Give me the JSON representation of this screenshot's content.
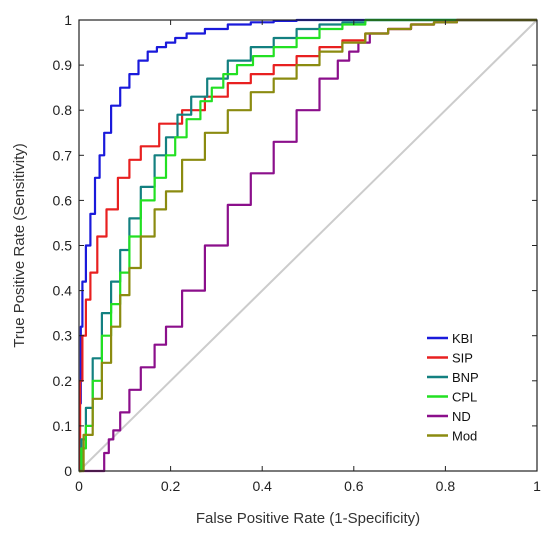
{
  "chart_data": {
    "type": "line",
    "xlabel": "False Positive Rate (1-Specificity)",
    "ylabel": "True Positive Rate (Sensitivity)",
    "xlim": [
      0,
      1
    ],
    "ylim": [
      0,
      1
    ],
    "xticks": [
      "0",
      "0.2",
      "0.4",
      "0.6",
      "0.8",
      "1"
    ],
    "yticks": [
      "0",
      "0.1",
      "0.2",
      "0.3",
      "0.4",
      "0.5",
      "0.6",
      "0.7",
      "0.8",
      "0.9",
      "1"
    ],
    "grid": false,
    "legend_position": "bottom-right",
    "series": [
      {
        "name": "KBI",
        "color": "#1a1adb",
        "x": [
          0,
          0.003,
          0.005,
          0.01,
          0.02,
          0.03,
          0.04,
          0.05,
          0.06,
          0.08,
          0.1,
          0.12,
          0.14,
          0.16,
          0.18,
          0.2,
          0.22,
          0.25,
          0.3,
          0.35,
          0.4,
          0.45,
          0.5,
          1.0
        ],
        "y": [
          0,
          0.15,
          0.32,
          0.42,
          0.5,
          0.57,
          0.65,
          0.7,
          0.75,
          0.81,
          0.85,
          0.88,
          0.91,
          0.93,
          0.94,
          0.95,
          0.96,
          0.97,
          0.98,
          0.99,
          0.995,
          0.998,
          1.0,
          1.0
        ]
      },
      {
        "name": "SIP",
        "color": "#e82020",
        "x": [
          0,
          0.005,
          0.01,
          0.02,
          0.03,
          0.05,
          0.07,
          0.1,
          0.12,
          0.15,
          0.2,
          0.25,
          0.3,
          0.35,
          0.4,
          0.45,
          0.5,
          0.55,
          0.6,
          0.65,
          0.7,
          0.75,
          0.8,
          0.85,
          1.0
        ],
        "y": [
          0,
          0.2,
          0.3,
          0.38,
          0.44,
          0.52,
          0.58,
          0.65,
          0.69,
          0.72,
          0.77,
          0.8,
          0.83,
          0.86,
          0.88,
          0.9,
          0.92,
          0.94,
          0.955,
          0.97,
          0.98,
          0.99,
          0.995,
          1.0,
          1.0
        ]
      },
      {
        "name": "BNP",
        "color": "#138080",
        "x": [
          0,
          0.01,
          0.02,
          0.04,
          0.06,
          0.08,
          0.1,
          0.12,
          0.15,
          0.18,
          0.2,
          0.23,
          0.26,
          0.3,
          0.35,
          0.4,
          0.45,
          0.5,
          0.55,
          0.6,
          0.65,
          1.0
        ],
        "y": [
          0,
          0.07,
          0.14,
          0.25,
          0.35,
          0.42,
          0.49,
          0.56,
          0.63,
          0.7,
          0.74,
          0.79,
          0.83,
          0.87,
          0.91,
          0.94,
          0.96,
          0.98,
          0.99,
          0.995,
          1.0,
          1.0
        ]
      },
      {
        "name": "CPL",
        "color": "#22e022",
        "x": [
          0,
          0.01,
          0.02,
          0.04,
          0.06,
          0.08,
          0.1,
          0.12,
          0.15,
          0.18,
          0.2,
          0.22,
          0.25,
          0.28,
          0.3,
          0.33,
          0.36,
          0.4,
          0.45,
          0.5,
          0.55,
          0.6,
          0.65,
          1.0
        ],
        "y": [
          0,
          0.05,
          0.1,
          0.2,
          0.3,
          0.37,
          0.44,
          0.52,
          0.6,
          0.65,
          0.7,
          0.74,
          0.78,
          0.82,
          0.85,
          0.88,
          0.9,
          0.92,
          0.94,
          0.96,
          0.98,
          0.99,
          1.0,
          1.0
        ]
      },
      {
        "name": "ND",
        "color": "#8b0f8b",
        "x": [
          0,
          0.05,
          0.06,
          0.07,
          0.08,
          0.1,
          0.12,
          0.15,
          0.18,
          0.2,
          0.25,
          0.3,
          0.35,
          0.4,
          0.45,
          0.5,
          0.55,
          0.58,
          0.6,
          0.62,
          0.65,
          0.7,
          0.75,
          0.8,
          0.85,
          1.0
        ],
        "y": [
          0,
          0,
          0.04,
          0.07,
          0.09,
          0.13,
          0.18,
          0.23,
          0.28,
          0.32,
          0.4,
          0.5,
          0.59,
          0.66,
          0.73,
          0.8,
          0.87,
          0.91,
          0.93,
          0.95,
          0.97,
          0.98,
          0.99,
          0.995,
          1.0,
          1.0
        ]
      },
      {
        "name": "Mod",
        "color": "#8b8b10",
        "x": [
          0,
          0.02,
          0.04,
          0.06,
          0.08,
          0.1,
          0.12,
          0.15,
          0.18,
          0.2,
          0.25,
          0.3,
          0.35,
          0.4,
          0.45,
          0.5,
          0.55,
          0.6,
          0.65,
          0.7,
          0.75,
          0.8,
          0.85,
          1.0
        ],
        "y": [
          0,
          0.08,
          0.16,
          0.24,
          0.32,
          0.39,
          0.45,
          0.52,
          0.58,
          0.62,
          0.69,
          0.75,
          0.8,
          0.84,
          0.87,
          0.9,
          0.93,
          0.95,
          0.97,
          0.98,
          0.99,
          0.995,
          1.0,
          1.0
        ]
      }
    ]
  }
}
